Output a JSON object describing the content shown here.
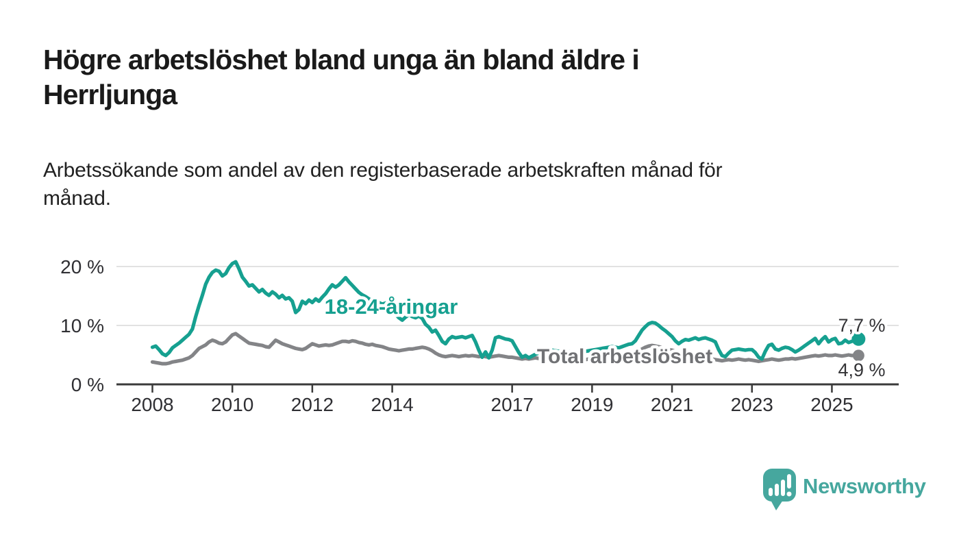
{
  "title_lines": [
    "Högre arbetslöshet bland unga än bland äldre i",
    "Herrljunga"
  ],
  "subtitle_lines": [
    "Arbetssökande som andel av den registerbaserade arbetskraften månad för",
    "månad."
  ],
  "colors": {
    "background": "#ffffff",
    "title_text": "#1a1a1a",
    "subtitle_text": "#212121",
    "axis_line": "#3a3a3a",
    "axis_text": "#2f2f33",
    "gridline": "#d9d9d9",
    "value_label_text": "#333336",
    "youth_series": "#16a090",
    "total_series": "#838487",
    "total_label": "#717275",
    "logo_teal": "#46a79e"
  },
  "chart_data": {
    "type": "line",
    "x_unit": "month",
    "x_start": "2008-01",
    "x_end": "2025-09",
    "grid": "horizontal",
    "legend_position": "inline-labels",
    "ylim": [
      0,
      21.5
    ],
    "y_ticks": [
      {
        "value": 0,
        "label": "0 %"
      },
      {
        "value": 10,
        "label": "10 %"
      },
      {
        "value": 20,
        "label": "20 %"
      }
    ],
    "x_ticks": [
      {
        "year": 2008,
        "label": "2008"
      },
      {
        "year": 2010,
        "label": "2010"
      },
      {
        "year": 2012,
        "label": "2012"
      },
      {
        "year": 2014,
        "label": "2014"
      },
      {
        "year": 2017,
        "label": "2017"
      },
      {
        "year": 2019,
        "label": "2019"
      },
      {
        "year": 2021,
        "label": "2021"
      },
      {
        "year": 2023,
        "label": "2023"
      },
      {
        "year": 2025,
        "label": "2025"
      }
    ],
    "series": [
      {
        "name": "Total arbetslöshet",
        "color": "#838487",
        "label_color": "#717275",
        "end_label": "4,9 %",
        "end_value": 4.9,
        "values": [
          3.8,
          3.7,
          3.6,
          3.5,
          3.5,
          3.6,
          3.8,
          3.9,
          4.0,
          4.1,
          4.3,
          4.5,
          4.9,
          5.5,
          6.1,
          6.4,
          6.7,
          7.2,
          7.5,
          7.3,
          7.0,
          6.9,
          7.2,
          7.8,
          8.4,
          8.6,
          8.2,
          7.8,
          7.4,
          7.0,
          6.9,
          6.8,
          6.7,
          6.6,
          6.4,
          6.3,
          6.9,
          7.5,
          7.2,
          6.9,
          6.7,
          6.5,
          6.3,
          6.1,
          6.0,
          5.9,
          6.1,
          6.5,
          6.9,
          6.7,
          6.5,
          6.6,
          6.7,
          6.6,
          6.7,
          6.9,
          7.1,
          7.3,
          7.3,
          7.2,
          7.4,
          7.3,
          7.1,
          7.0,
          6.8,
          6.7,
          6.8,
          6.6,
          6.5,
          6.4,
          6.2,
          6.0,
          5.9,
          5.8,
          5.7,
          5.8,
          5.9,
          6.0,
          6.0,
          6.1,
          6.2,
          6.3,
          6.2,
          6.0,
          5.7,
          5.3,
          5.0,
          4.8,
          4.7,
          4.8,
          4.9,
          4.8,
          4.7,
          4.8,
          4.9,
          4.8,
          4.9,
          4.8,
          4.7,
          4.8,
          4.7,
          4.6,
          4.7,
          4.8,
          4.9,
          4.8,
          4.7,
          4.6,
          4.6,
          4.5,
          4.4,
          4.3,
          4.4,
          4.3,
          4.4,
          4.5,
          4.4,
          4.3,
          4.2,
          4.2,
          4.2,
          4.1,
          4.1,
          4.0,
          4.1,
          4.2,
          4.1,
          4.0,
          4.1,
          4.2,
          4.2,
          4.3,
          4.3,
          4.2,
          4.3,
          4.4,
          4.4,
          4.5,
          4.6,
          4.5,
          4.6,
          4.7,
          4.8,
          4.9,
          5.0,
          5.2,
          5.6,
          6.0,
          6.3,
          6.5,
          6.6,
          6.5,
          6.4,
          6.2,
          6.0,
          5.9,
          5.8,
          5.6,
          5.4,
          5.3,
          5.2,
          5.1,
          5.0,
          4.9,
          4.8,
          4.7,
          4.6,
          4.5,
          4.3,
          4.2,
          4.1,
          4.0,
          4.1,
          4.2,
          4.1,
          4.2,
          4.3,
          4.2,
          4.1,
          4.2,
          4.1,
          4.0,
          3.9,
          4.0,
          4.1,
          4.2,
          4.3,
          4.2,
          4.1,
          4.2,
          4.3,
          4.3,
          4.4,
          4.3,
          4.4,
          4.5,
          4.6,
          4.7,
          4.8,
          4.9,
          4.8,
          4.9,
          5.0,
          4.9,
          4.9,
          5.0,
          4.9,
          4.8,
          4.9,
          5.0,
          4.9,
          4.9,
          4.9
        ]
      },
      {
        "name": "18-24-åringar",
        "color": "#16a090",
        "label_color": "#16a090",
        "end_label": "7,7 %",
        "end_value": 7.7,
        "values": [
          6.3,
          6.5,
          5.9,
          5.2,
          4.9,
          5.4,
          6.2,
          6.6,
          7.0,
          7.5,
          8.0,
          8.5,
          9.4,
          11.5,
          13.4,
          15.1,
          17.0,
          18.2,
          19.0,
          19.4,
          19.2,
          18.4,
          18.8,
          19.8,
          20.5,
          20.8,
          19.6,
          18.2,
          17.5,
          16.7,
          16.9,
          16.3,
          15.7,
          16.1,
          15.5,
          15.1,
          15.7,
          15.3,
          14.7,
          15.1,
          14.5,
          14.7,
          14.1,
          12.2,
          12.7,
          14.1,
          13.7,
          14.3,
          13.9,
          14.5,
          14.1,
          14.8,
          15.4,
          16.2,
          16.9,
          16.5,
          16.9,
          17.5,
          18.1,
          17.4,
          16.8,
          16.2,
          15.6,
          15.2,
          14.9,
          14.5,
          14.2,
          14.4,
          13.9,
          13.6,
          13.8,
          13.2,
          12.6,
          11.9,
          11.3,
          10.9,
          11.4,
          11.8,
          11.5,
          11.3,
          11.6,
          11.2,
          10.2,
          9.7,
          8.9,
          9.2,
          8.3,
          7.3,
          6.9,
          7.7,
          8.1,
          7.9,
          8.0,
          8.1,
          7.9,
          8.1,
          8.3,
          7.2,
          5.8,
          4.6,
          5.5,
          4.5,
          5.8,
          7.9,
          8.1,
          7.9,
          7.7,
          7.6,
          7.4,
          6.4,
          5.4,
          4.6,
          4.9,
          4.5,
          4.8,
          5.1,
          5.3,
          5.5,
          5.6,
          5.7,
          5.8,
          5.7,
          5.6,
          5.5,
          5.4,
          5.5,
          5.6,
          5.5,
          5.4,
          5.5,
          5.6,
          5.7,
          5.8,
          5.9,
          6.0,
          6.1,
          6.2,
          6.3,
          6.4,
          6.3,
          6.2,
          6.4,
          6.6,
          6.8,
          6.9,
          7.4,
          8.3,
          9.2,
          9.8,
          10.3,
          10.5,
          10.4,
          10.0,
          9.5,
          9.1,
          8.6,
          8.1,
          7.4,
          6.9,
          7.3,
          7.6,
          7.5,
          7.7,
          7.9,
          7.6,
          7.8,
          7.9,
          7.7,
          7.5,
          7.2,
          5.9,
          4.9,
          4.7,
          5.3,
          5.8,
          5.9,
          6.0,
          5.9,
          5.8,
          5.9,
          5.9,
          5.4,
          4.6,
          4.3,
          5.6,
          6.6,
          6.8,
          6.0,
          5.8,
          6.1,
          6.3,
          6.2,
          5.9,
          5.5,
          5.8,
          6.2,
          6.6,
          7.0,
          7.4,
          7.8,
          6.9,
          7.6,
          8.1,
          7.2,
          7.6,
          7.8,
          6.9,
          7.0,
          7.5,
          7.1,
          7.3,
          7.5,
          7.7
        ]
      }
    ]
  },
  "logo": {
    "text": "Newsworthy"
  }
}
